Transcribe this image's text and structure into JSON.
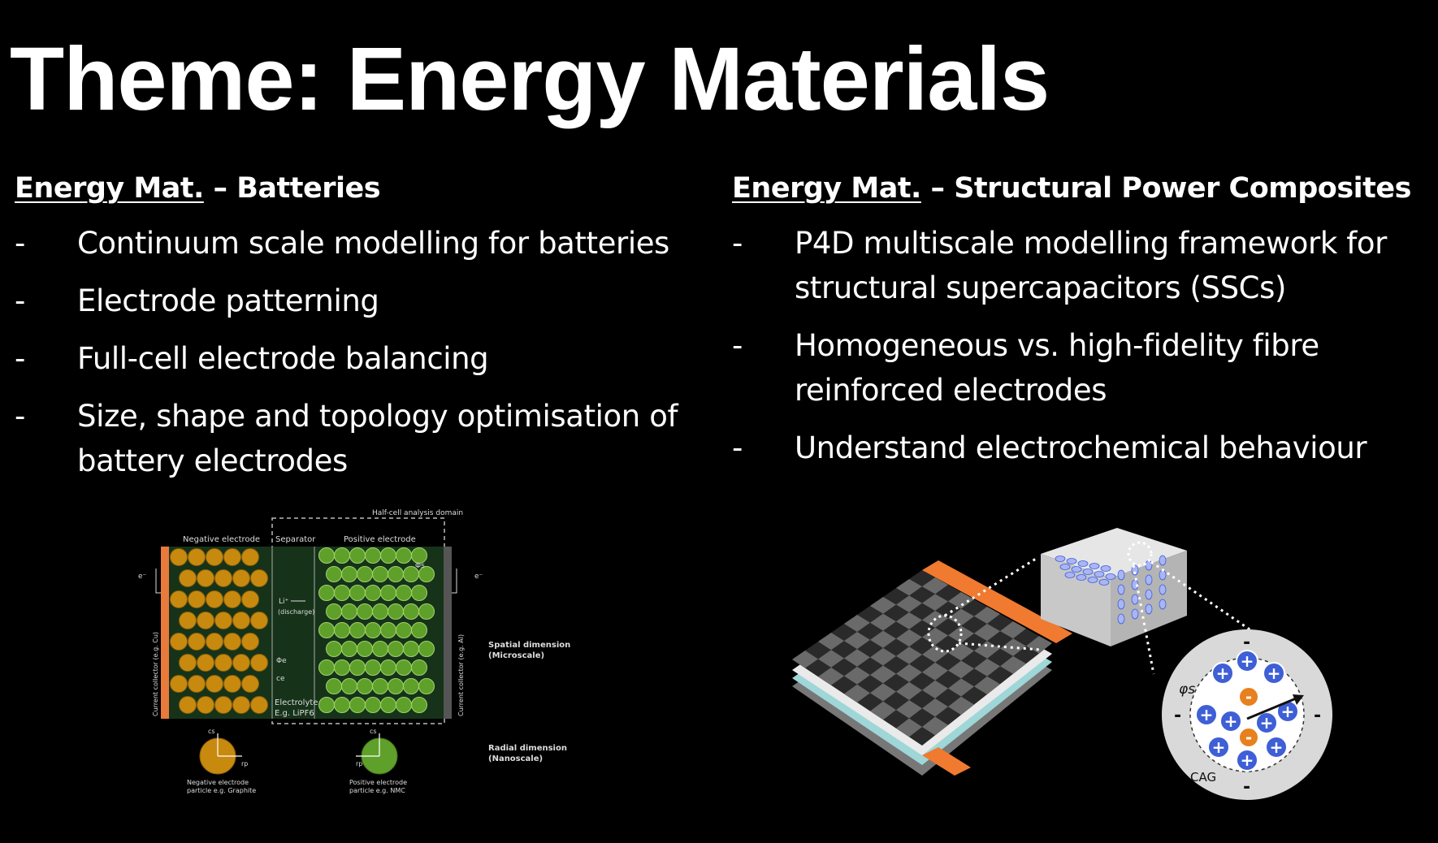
{
  "title": "Theme: Energy Materials",
  "left": {
    "heading_underlined": "Energy Mat.",
    "heading_rest": " – Batteries",
    "bullets": [
      "Continuum scale modelling for batteries",
      "Electrode patterning",
      "Full-cell electrode balancing",
      "Size, shape and topology optimisation of battery electrodes"
    ]
  },
  "right": {
    "heading_underlined": "Energy Mat.",
    "heading_rest": " – Structural Power Composites",
    "bullets": [
      "P4D multiscale modelling framework for structural supercapacitors (SSCs)",
      "Homogeneous vs. high-fidelity fibre reinforced electrodes",
      "Understand electrochemical behaviour"
    ]
  },
  "bullet_marker": "-",
  "battery_diagram": {
    "half_cell_label": "Half-cell analysis domain",
    "negative_electrode": "Negative electrode",
    "separator": "Separator",
    "positive_electrode": "Positive electrode",
    "e_left": "e⁻",
    "e_right": "e⁻",
    "li_label": "Li⁺",
    "discharge": "(discharge)",
    "phi_e": "Φe",
    "c_e": "ce",
    "phi_s": "Φs",
    "electrolyte": "Electrolyte",
    "electrolyte_eg": "E.g. LiPF6",
    "collector_left": "Current collector (e.g. Cu)",
    "collector_right": "Current collector (e.g. Al)",
    "spatial_dim": "Spatial dimension",
    "microscale": "(Microscale)",
    "radial_dim": "Radial dimension",
    "nanoscale": "(Nanoscale)",
    "cs_label": "cs",
    "rp_label": "rp",
    "neg_particle_1": "Negative electrode",
    "neg_particle_2": "particle e.g. Graphite",
    "pos_particle_1": "Positive electrode",
    "pos_particle_2": "particle e.g. NMC",
    "colors": {
      "negative": "#c78a0f",
      "positive": "#5fa02a",
      "copper": "#e87a3c",
      "electrolyte_bg": "#16331a"
    }
  },
  "composite_diagram": {
    "phi_label": "φs",
    "cag_label": "CAG",
    "plus": "+",
    "minus": "-",
    "colors": {
      "tab": "#f07a30",
      "cation": "#3f5fd6",
      "anion": "#e8801e",
      "block": "#cfcfcf"
    }
  }
}
